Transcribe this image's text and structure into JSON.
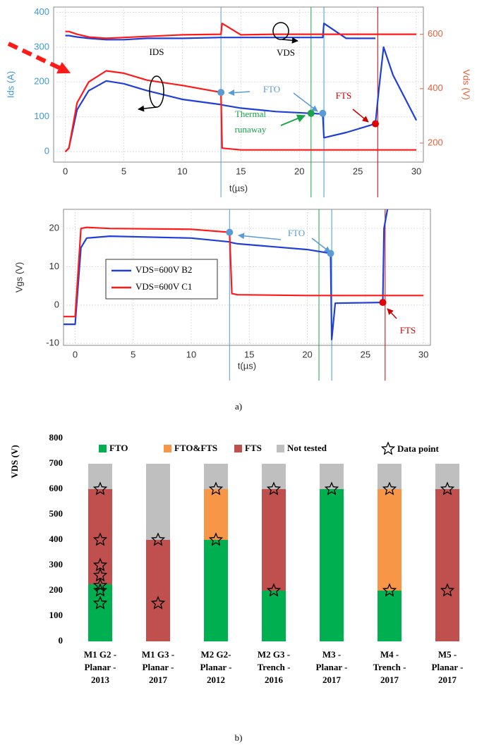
{
  "chart_data": [
    {
      "type": "line",
      "xlabel": "t(µs)",
      "ylabel": "Ids (A)",
      "y2label": "Vds (V)",
      "ylabel_color": "#3a9ad9",
      "y2label_color": "#e8603c",
      "grid": true,
      "xlim": [
        -1,
        30.6
      ],
      "xticks": [
        0,
        5,
        10,
        15,
        20,
        25,
        30
      ],
      "ylim": [
        -30,
        415
      ],
      "yticks": [
        0,
        100,
        200,
        300,
        400
      ],
      "y2lim": [
        130,
        700
      ],
      "y2ticks": [
        200,
        400,
        600
      ],
      "x": [
        0,
        0.3,
        1,
        2,
        3.5,
        5,
        7,
        10,
        13.3,
        13.4,
        15,
        18,
        21,
        22,
        22.1,
        24,
        26.5,
        26.8,
        27.2,
        28,
        30
      ],
      "series": [
        {
          "color": "#1f3fd6",
          "values": [
            0,
            10,
            120,
            175,
            203,
            195,
            175,
            150,
            135,
            134,
            125,
            115,
            110,
            108,
            40,
            55,
            80,
            180,
            300,
            220,
            90
          ]
        },
        {
          "color": "#ff1a1a",
          "values": [
            0,
            10,
            140,
            200,
            232,
            225,
            205,
            190,
            170,
            10,
            5,
            5,
            5,
            5,
            5,
            5,
            5,
            5,
            5,
            5,
            5
          ]
        },
        {
          "color": "#1f3fd6",
          "axis": "y2",
          "values": [
            595,
            595,
            590,
            585,
            580,
            580,
            585,
            585,
            588,
            588,
            588,
            588,
            588,
            588,
            640,
            585,
            585,
            null,
            null,
            null,
            null
          ]
        },
        {
          "color": "#ff1a1a",
          "axis": "y2",
          "values": [
            610,
            610,
            600,
            590,
            585,
            588,
            592,
            598,
            600,
            640,
            598,
            600,
            600,
            600,
            600,
            600,
            600,
            600,
            600,
            600,
            600
          ]
        }
      ],
      "vlines": [
        {
          "x": 13.3,
          "color": "#5b9bd5"
        },
        {
          "x": 21,
          "color": "#1aa34a"
        },
        {
          "x": 22.1,
          "color": "#3a9ad9"
        },
        {
          "x": 26.7,
          "color": "#cc0000"
        }
      ],
      "markers": [
        {
          "x": 13.3,
          "y": 170,
          "color": "#5b9bd5"
        },
        {
          "x": 21,
          "y": 110,
          "color": "#1aa34a"
        },
        {
          "x": 22,
          "y": 110,
          "color": "#5b9bd5"
        },
        {
          "x": 26.5,
          "y": 80,
          "color": "#e00000"
        }
      ],
      "annotations": [
        {
          "text": "IDS",
          "color": "#000000"
        },
        {
          "text": "VDS",
          "color": "#000000"
        },
        {
          "text": "FTO",
          "color": "#5b9bd5"
        },
        {
          "text": "FTS",
          "color": "#cc0000"
        },
        {
          "text": "Thermal",
          "color": "#1aa34a"
        },
        {
          "text": "runaway",
          "color": "#1aa34a"
        }
      ]
    },
    {
      "type": "line",
      "xlabel": "t(µs)",
      "ylabel": "Vgs (V)",
      "grid": true,
      "xlim": [
        -1,
        30.6
      ],
      "xticks": [
        0,
        5,
        10,
        15,
        20,
        25,
        30
      ],
      "ylim": [
        -10.5,
        25
      ],
      "yticks": [
        -10,
        0,
        10,
        20
      ],
      "x": [
        -1,
        0,
        0.5,
        1,
        3,
        10,
        13.3,
        13.5,
        14,
        20,
        22,
        22.1,
        22.4,
        26.5,
        26.6,
        26.9,
        27,
        30
      ],
      "series": [
        {
          "name": "VDS=600V B2",
          "color": "#1f3fd6",
          "values": [
            -5,
            -5,
            15,
            17.5,
            18,
            17.5,
            16.5,
            16.3,
            16,
            14.5,
            13.5,
            -9,
            0.5,
            0.7,
            20,
            25,
            null,
            null
          ]
        },
        {
          "name": "VDS=600V C1",
          "color": "#ff1a1a",
          "values": [
            -3,
            -3,
            20,
            20.3,
            20,
            19.8,
            19,
            3,
            2.7,
            2.5,
            2.5,
            2.5,
            2.5,
            2.5,
            2.5,
            2.5,
            2.5,
            2.5
          ]
        }
      ],
      "vlines": [
        {
          "x": 13.3,
          "color": "#5b9bd5"
        },
        {
          "x": 21,
          "color": "#1aa34a"
        },
        {
          "x": 22.1,
          "color": "#3a9ad9"
        },
        {
          "x": 26.7,
          "color": "#cc0000"
        }
      ],
      "markers": [
        {
          "x": 13.3,
          "y": 19,
          "color": "#5b9bd5"
        },
        {
          "x": 22,
          "y": 13.5,
          "color": "#5b9bd5"
        },
        {
          "x": 26.5,
          "y": 0.7,
          "color": "#e00000"
        }
      ],
      "annotations": [
        {
          "text": "FTO",
          "color": "#5b9bd5"
        },
        {
          "text": "FTS",
          "color": "#cc0000"
        }
      ]
    },
    {
      "type": "stacked-bar",
      "ylabel": "VDS (V)",
      "ylim": [
        0,
        800
      ],
      "yticks": [
        0,
        100,
        200,
        300,
        400,
        500,
        600,
        700,
        800
      ],
      "categories": [
        [
          "M1 G2 -",
          "Planar -",
          "2013"
        ],
        [
          "M1 G3 -",
          "Planar -",
          "2017"
        ],
        [
          "M2 G2-",
          "Planar -",
          "2012"
        ],
        [
          "M2 G3 -",
          "Trench -",
          "2016"
        ],
        [
          "M3 -",
          "Planar -",
          "2017"
        ],
        [
          "M4 -",
          "Trench -",
          "2017"
        ],
        [
          "M5 -",
          "Planar -",
          "2017"
        ]
      ],
      "series": [
        {
          "name": "FTO",
          "color": "#00b050",
          "values": [
            225,
            0,
            400,
            200,
            600,
            200,
            0
          ]
        },
        {
          "name": "FTO&FTS",
          "color": "#f79646",
          "values": [
            0,
            0,
            200,
            0,
            0,
            400,
            0
          ]
        },
        {
          "name": "FTS",
          "color": "#c0504d",
          "values": [
            375,
            400,
            0,
            400,
            0,
            0,
            600
          ]
        },
        {
          "name": "Not tested",
          "color": "#bfbfbf",
          "values": [
            100,
            300,
            100,
            100,
            100,
            100,
            100
          ]
        }
      ],
      "data_points": {
        "name": "Data point",
        "values": [
          [
            600,
            400,
            300,
            260,
            220,
            200,
            150
          ],
          [
            400,
            150
          ],
          [
            600,
            400
          ],
          [
            600,
            200
          ],
          [
            600
          ],
          [
            600,
            200
          ],
          [
            600,
            200
          ]
        ]
      }
    }
  ],
  "captions": [
    "a)",
    "b)"
  ]
}
